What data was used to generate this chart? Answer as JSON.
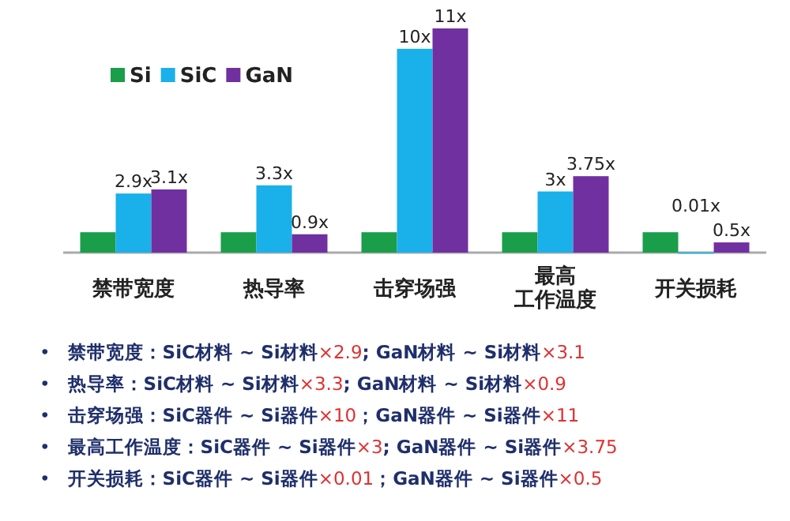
{
  "chart_data": {
    "type": "bar",
    "legend": "top left",
    "categories": [
      "禁带宽度",
      "热导率",
      "击穿场强",
      "最高工作温度",
      "开关损耗"
    ],
    "series": [
      {
        "name": "Si",
        "color": "#1a9e4a",
        "values": [
          1,
          1,
          1,
          1,
          1
        ]
      },
      {
        "name": "SiC",
        "color": "#1ab0ea",
        "values": [
          2.9,
          3.3,
          10,
          3,
          0.01
        ],
        "value_labels": [
          "2.9x",
          "3.3x",
          "10x",
          "3x",
          "0.01x"
        ]
      },
      {
        "name": "GaN",
        "color": "#7030a0",
        "values": [
          3.1,
          0.9,
          11,
          3.75,
          0.5
        ],
        "value_labels": [
          "3.1x",
          "0.9x",
          "11x",
          "3.75x",
          "0.5x"
        ]
      }
    ],
    "annotations": [
      "•禁带宽度：SiC材料 ~ Si材料×2.9; GaN材料 ~ Si材料×3.1",
      "•热导率：SiC材料 ~ Si材料×3.3; GaN材料 ~ Si材料×0.9",
      "•击穿场强：SiC器件 ~ Si器件×10；GaN器件 ~ Si器件×11",
      "•最高工作温度：SiC器件 ~ Si器件×3; GaN器件 ~ Si器件×3.75",
      "•开关损耗：SiC器件 ~ Si器件×0.01；GaN器件 ~ Si器件×0.5"
    ]
  }
}
